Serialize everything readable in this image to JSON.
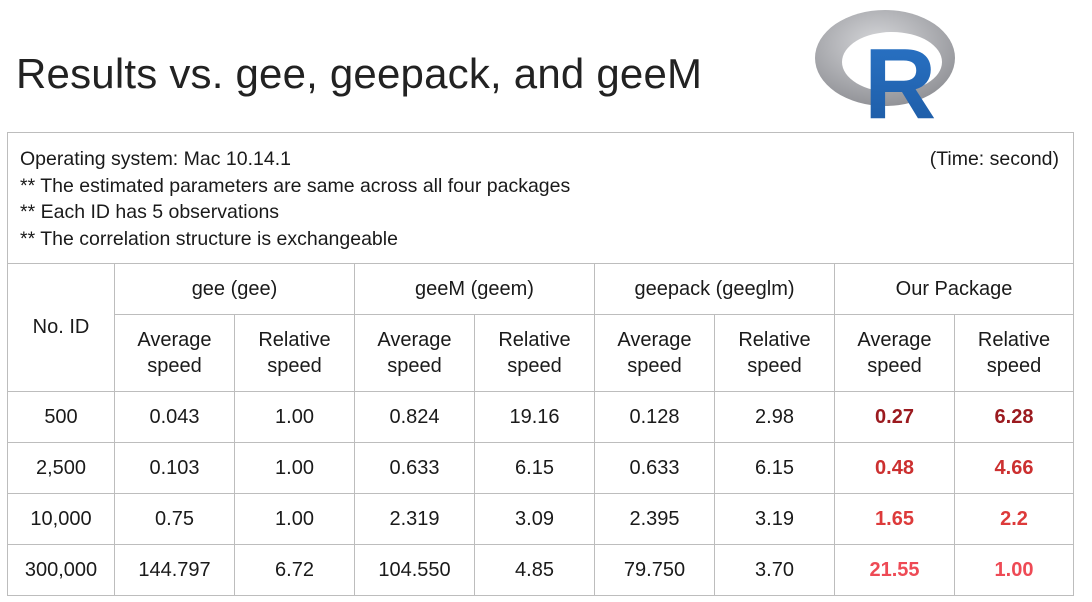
{
  "slide": {
    "title": "Results vs. gee, geepack, and geeM"
  },
  "logo": {
    "letter": "R",
    "ring_color": "#a9aaae",
    "letter_color": "#2266b8"
  },
  "info": {
    "lines": [
      "Operating system: Mac 10.14.1",
      "** The estimated parameters are same across all four packages",
      "** Each ID has 5 observations",
      "** The correlation structure is exchangeable"
    ],
    "time_unit": "(Time: second)"
  },
  "table": {
    "id_header": "No. ID",
    "groups": [
      "gee (gee)",
      "geeM (geem)",
      "geepack (geeglm)",
      "Our Package"
    ],
    "subheaders": {
      "average_line1": "Average",
      "average_line2": "speed",
      "relative_line1": "Relative",
      "relative_line2": "speed"
    },
    "rows": [
      {
        "id": "500",
        "values": [
          "0.043",
          "1.00",
          "0.824",
          "19.16",
          "0.128",
          "2.98",
          "0.27",
          "6.28"
        ],
        "highlight_color": "#9b1a1f"
      },
      {
        "id": "2,500",
        "values": [
          "0.103",
          "1.00",
          "0.633",
          "6.15",
          "0.633",
          "6.15",
          "0.48",
          "4.66"
        ],
        "highlight_color": "#cc3030"
      },
      {
        "id": "10,000",
        "values": [
          "0.75",
          "1.00",
          "2.319",
          "3.09",
          "2.395",
          "3.19",
          "1.65",
          "2.2"
        ],
        "highlight_color": "#dd3a3a"
      },
      {
        "id": "300,000",
        "values": [
          "144.797",
          "6.72",
          "104.550",
          "4.85",
          "79.750",
          "3.70",
          "21.55",
          "1.00"
        ],
        "highlight_color": "#ee4a55"
      }
    ]
  }
}
